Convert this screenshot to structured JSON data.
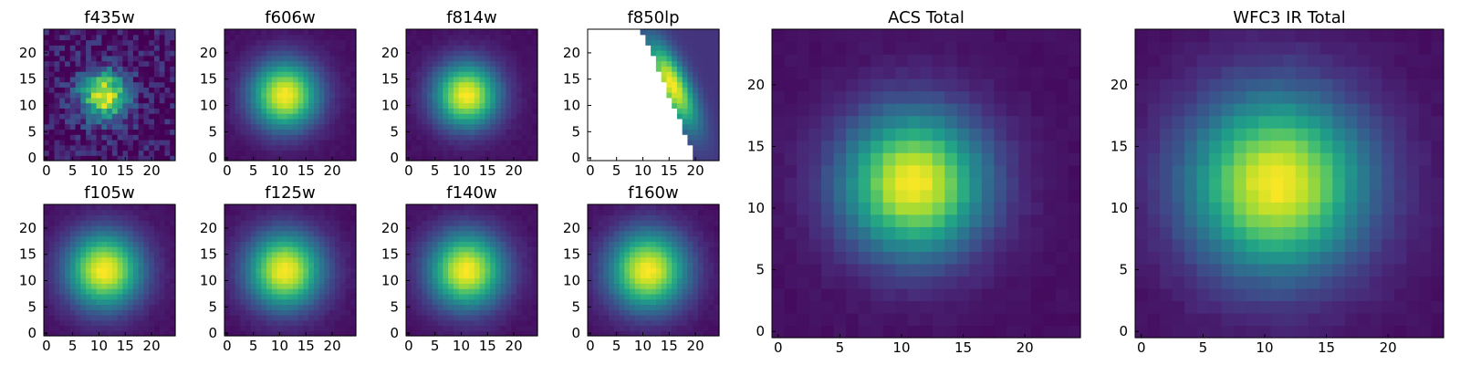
{
  "chart_data": [
    {
      "type": "heatmap",
      "title": "f435w",
      "profile": "noisy",
      "center": [
        11,
        12
      ],
      "sigma": 3.2,
      "ticks": [
        0,
        5,
        10,
        15,
        20
      ],
      "xlim": [
        0,
        25
      ],
      "ylim": [
        0,
        25
      ],
      "colormap": "viridis"
    },
    {
      "type": "heatmap",
      "title": "f606w",
      "profile": "smooth",
      "center": [
        11,
        12
      ],
      "sigma": 4.5,
      "ticks": [
        0,
        5,
        10,
        15,
        20
      ],
      "xlim": [
        0,
        25
      ],
      "ylim": [
        0,
        25
      ],
      "colormap": "viridis"
    },
    {
      "type": "heatmap",
      "title": "f814w",
      "profile": "smooth",
      "center": [
        11,
        12
      ],
      "sigma": 4.3,
      "ticks": [
        0,
        5,
        10,
        15,
        20
      ],
      "xlim": [
        0,
        25
      ],
      "ylim": [
        0,
        25
      ],
      "colormap": "viridis"
    },
    {
      "type": "heatmap",
      "title": "f850lp",
      "profile": "masked",
      "center": [
        16,
        14
      ],
      "sigma": 4.0,
      "ticks": [
        0,
        5,
        10,
        15,
        20
      ],
      "xlim": [
        0,
        25
      ],
      "ylim": [
        0,
        25
      ],
      "colormap": "viridis"
    },
    {
      "type": "heatmap",
      "title": "f105w",
      "profile": "smooth",
      "center": [
        11,
        12
      ],
      "sigma": 5.0,
      "ticks": [
        0,
        5,
        10,
        15,
        20
      ],
      "xlim": [
        0,
        25
      ],
      "ylim": [
        0,
        25
      ],
      "colormap": "viridis"
    },
    {
      "type": "heatmap",
      "title": "f125w",
      "profile": "smooth",
      "center": [
        11,
        12
      ],
      "sigma": 5.0,
      "ticks": [
        0,
        5,
        10,
        15,
        20
      ],
      "xlim": [
        0,
        25
      ],
      "ylim": [
        0,
        25
      ],
      "colormap": "viridis"
    },
    {
      "type": "heatmap",
      "title": "f140w",
      "profile": "smooth",
      "center": [
        11,
        12
      ],
      "sigma": 5.0,
      "ticks": [
        0,
        5,
        10,
        15,
        20
      ],
      "xlim": [
        0,
        25
      ],
      "ylim": [
        0,
        25
      ],
      "colormap": "viridis"
    },
    {
      "type": "heatmap",
      "title": "f160w",
      "profile": "smooth",
      "center": [
        11,
        12
      ],
      "sigma": 5.2,
      "ticks": [
        0,
        5,
        10,
        15,
        20
      ],
      "xlim": [
        0,
        25
      ],
      "ylim": [
        0,
        25
      ],
      "colormap": "viridis"
    },
    {
      "type": "heatmap",
      "title": "ACS Total",
      "profile": "smooth",
      "center": [
        11,
        12
      ],
      "sigma": 4.0,
      "ticks": [
        0,
        5,
        10,
        15,
        20
      ],
      "xlim": [
        0,
        25
      ],
      "ylim": [
        0,
        25
      ],
      "colormap": "viridis"
    },
    {
      "type": "heatmap",
      "title": "WFC3 IR Total",
      "profile": "smooth",
      "center": [
        11,
        12
      ],
      "sigma": 5.0,
      "ticks": [
        0,
        5,
        10,
        15,
        20
      ],
      "xlim": [
        0,
        25
      ],
      "ylim": [
        0,
        25
      ],
      "colormap": "viridis"
    }
  ]
}
